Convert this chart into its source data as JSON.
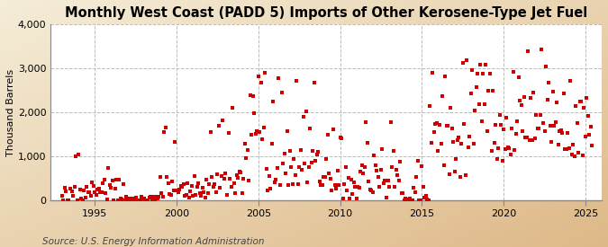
{
  "title": "Monthly West Coast (PADD 5) Imports of Other Kerosene-Type Jet Fuel",
  "ylabel": "Thousand Barrels",
  "source": "Source: U.S. Energy Information Administration",
  "bg_color_top": "#F5EDD8",
  "bg_color_bottom": "#E8C89A",
  "plot_bg_color": "#FFFFFF",
  "marker_color": "#CC0000",
  "marker": "s",
  "marker_size": 3.5,
  "ylim": [
    0,
    4000
  ],
  "yticks": [
    0,
    1000,
    2000,
    3000,
    4000
  ],
  "ytick_labels": [
    "0",
    "1,000",
    "2,000",
    "3,000",
    "4,000"
  ],
  "xticks": [
    1995,
    2000,
    2005,
    2010,
    2015,
    2020,
    2025
  ],
  "xlim_left": 1992.3,
  "xlim_right": 2026.0,
  "title_fontsize": 10.5,
  "label_fontsize": 8,
  "tick_fontsize": 8,
  "source_fontsize": 7.5,
  "seed": 12345
}
